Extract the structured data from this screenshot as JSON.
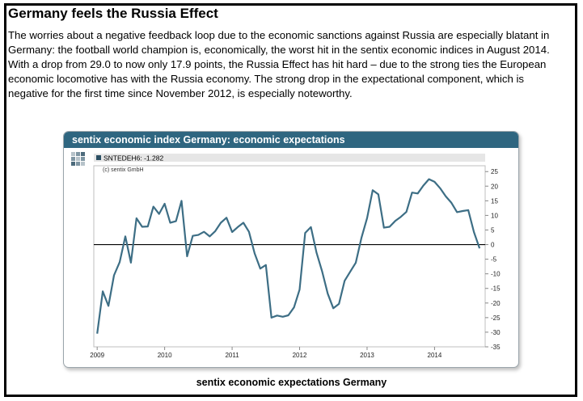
{
  "article": {
    "title": "Germany feels the Russia Effect",
    "body": "The worries about a negative feedback loop due to the economic sanctions against Russia are especially blatant in Germany: the football world champion is, economically, the worst hit in the sentix economic indices in August 2014. With a drop from 29.0 to now only 17.9 points, the Russia Effect has hit hard – due to the strong ties the European economic locomotive has with the Russia economy. The strong drop in the expectational component, which is negative for the first time since November 2012, is especially noteworthy."
  },
  "chart_data": {
    "type": "line",
    "title": "sentix economic index Germany: economic expectations",
    "legend": "SNTEDEH6: -1.282",
    "copyright": "(c) sentix GmbH",
    "caption": "sentix economic expectations Germany",
    "line_color": "#3d6e85",
    "x_tick_labels": [
      "2009",
      "2010",
      "2011",
      "2012",
      "2013",
      "2014"
    ],
    "x_tick_values": [
      2009.0,
      2010.0,
      2011.0,
      2012.0,
      2013.0,
      2014.0
    ],
    "xlim": [
      2008.95,
      2014.75
    ],
    "ylim": [
      -35,
      27
    ],
    "y_ticks": [
      25,
      20,
      15,
      10,
      5,
      0,
      -5,
      -10,
      -15,
      -20,
      -25,
      -30,
      -35
    ],
    "y_tick_labels": [
      "25",
      "20",
      "15",
      "10",
      "5",
      "0",
      "-5",
      "-10",
      "-15",
      "-20",
      "-25",
      "-30",
      "-35"
    ],
    "series": [
      {
        "name": "SNTEDEH6",
        "x": [
          2009.0,
          2009.083,
          2009.167,
          2009.25,
          2009.333,
          2009.417,
          2009.5,
          2009.583,
          2009.667,
          2009.75,
          2009.833,
          2009.917,
          2010.0,
          2010.083,
          2010.167,
          2010.25,
          2010.333,
          2010.417,
          2010.5,
          2010.583,
          2010.667,
          2010.75,
          2010.833,
          2010.917,
          2011.0,
          2011.083,
          2011.167,
          2011.25,
          2011.333,
          2011.417,
          2011.5,
          2011.583,
          2011.667,
          2011.75,
          2011.833,
          2011.917,
          2012.0,
          2012.083,
          2012.167,
          2012.25,
          2012.333,
          2012.417,
          2012.5,
          2012.583,
          2012.667,
          2012.75,
          2012.833,
          2012.917,
          2013.0,
          2013.083,
          2013.167,
          2013.25,
          2013.333,
          2013.417,
          2013.5,
          2013.583,
          2013.667,
          2013.75,
          2013.833,
          2013.917,
          2014.0,
          2014.083,
          2014.167,
          2014.25,
          2014.333,
          2014.417,
          2014.5,
          2014.583,
          2014.667
        ],
        "values": [
          -30.5,
          -16,
          -21,
          -10.5,
          -6,
          2.8,
          -6.2,
          9,
          6.1,
          6.2,
          13,
          10.5,
          14,
          7.5,
          8,
          15,
          -4,
          3,
          3.3,
          4.4,
          2.8,
          4.6,
          7.5,
          9.2,
          4.3,
          6,
          7.5,
          4.4,
          -3,
          -8.2,
          -7,
          -25,
          -24.3,
          -24.7,
          -24.2,
          -21.5,
          -15.4,
          4,
          6,
          -2.7,
          -9.1,
          -16.8,
          -21.8,
          -20.3,
          -12.4,
          -9.3,
          -6.2,
          2.3,
          9.1,
          18.6,
          17.2,
          5.8,
          6.1,
          8.1,
          9.5,
          11.2,
          17.8,
          17.5,
          20.2,
          22.4,
          21.5,
          19.3,
          16.5,
          14.3,
          11.1,
          11.5,
          11.8,
          4.3,
          -1.3
        ]
      }
    ]
  }
}
